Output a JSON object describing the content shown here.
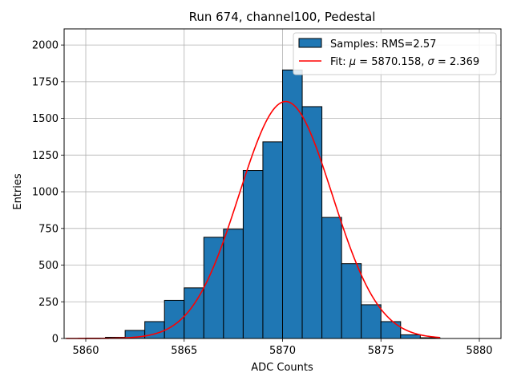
{
  "chart_data": {
    "type": "bar",
    "title": "Run 674, channel100, Pedestal",
    "xlabel": "ADC Counts",
    "ylabel": "Entries",
    "xlim": [
      5858.9,
      5881.1
    ],
    "ylim": [
      0,
      2110
    ],
    "xticks": [
      5860,
      5865,
      5870,
      5875,
      5880
    ],
    "yticks": [
      0,
      250,
      500,
      750,
      1000,
      1250,
      1500,
      1750,
      2000
    ],
    "grid": true,
    "legend_position": "top-right",
    "histogram": {
      "name": "Samples: RMS=2.57",
      "bin_width": 1,
      "bin_left_edges": [
        5859,
        5860,
        5861,
        5862,
        5863,
        5864,
        5865,
        5866,
        5867,
        5868,
        5869,
        5870,
        5871,
        5872,
        5873,
        5874,
        5875,
        5876,
        5877,
        5878,
        5879
      ],
      "counts": [
        0,
        2,
        8,
        55,
        115,
        260,
        345,
        690,
        745,
        1145,
        1340,
        1830,
        1580,
        825,
        510,
        230,
        115,
        25,
        5,
        0,
        0
      ],
      "color": "#1f77b4",
      "edge_color": "#000000"
    },
    "fit": {
      "name_prefix": "Fit: ",
      "mu_symbol": "μ",
      "sigma_symbol": "σ",
      "mu": 5870.158,
      "sigma": 2.369,
      "peak": 1615,
      "x_range": [
        5859,
        5878
      ],
      "color": "#ff0000"
    }
  }
}
